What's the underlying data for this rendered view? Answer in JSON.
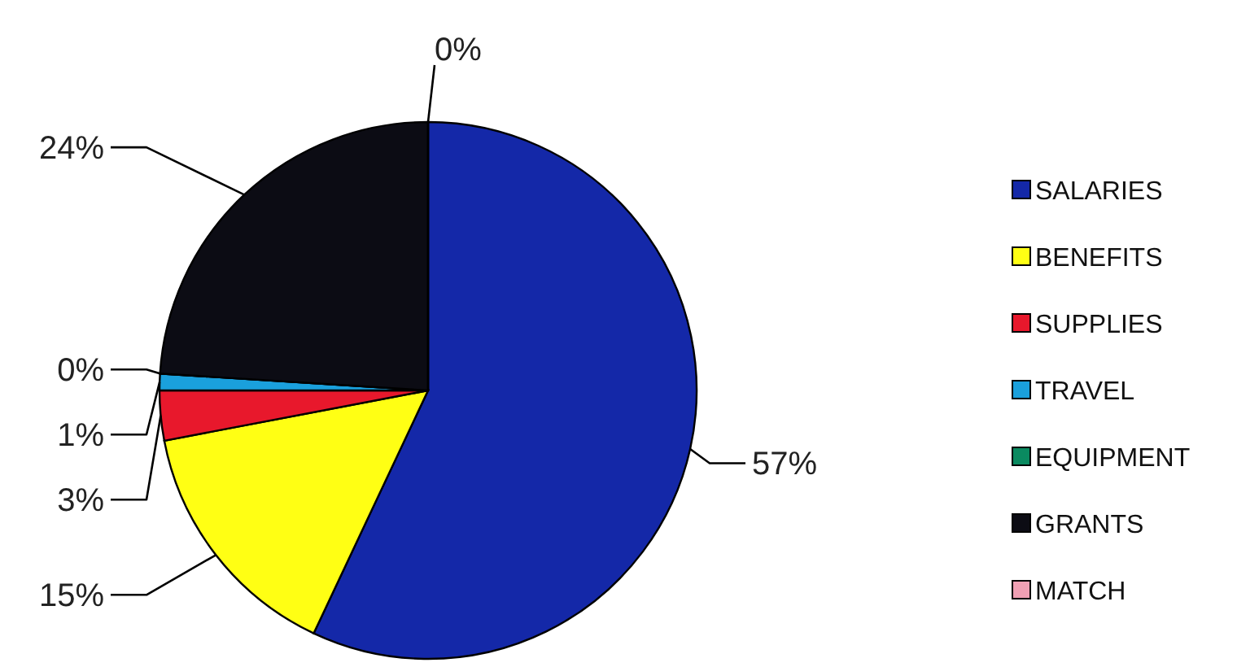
{
  "chart_data": {
    "type": "pie",
    "categories": [
      "SALARIES",
      "BENEFITS",
      "SUPPLIES",
      "TRAVEL",
      "EQUIPMENT",
      "GRANTS",
      "MATCH"
    ],
    "values": [
      57,
      15,
      3,
      1,
      0,
      24,
      0
    ],
    "value_labels": [
      "57%",
      "15%",
      "3%",
      "1%",
      "0%",
      "24%",
      "0%"
    ],
    "colors": [
      "#1428a8",
      "#ffff14",
      "#e8182c",
      "#1aa0dc",
      "#0a8a60",
      "#0c0c14",
      "#f0a0b4"
    ],
    "legend": "right"
  }
}
